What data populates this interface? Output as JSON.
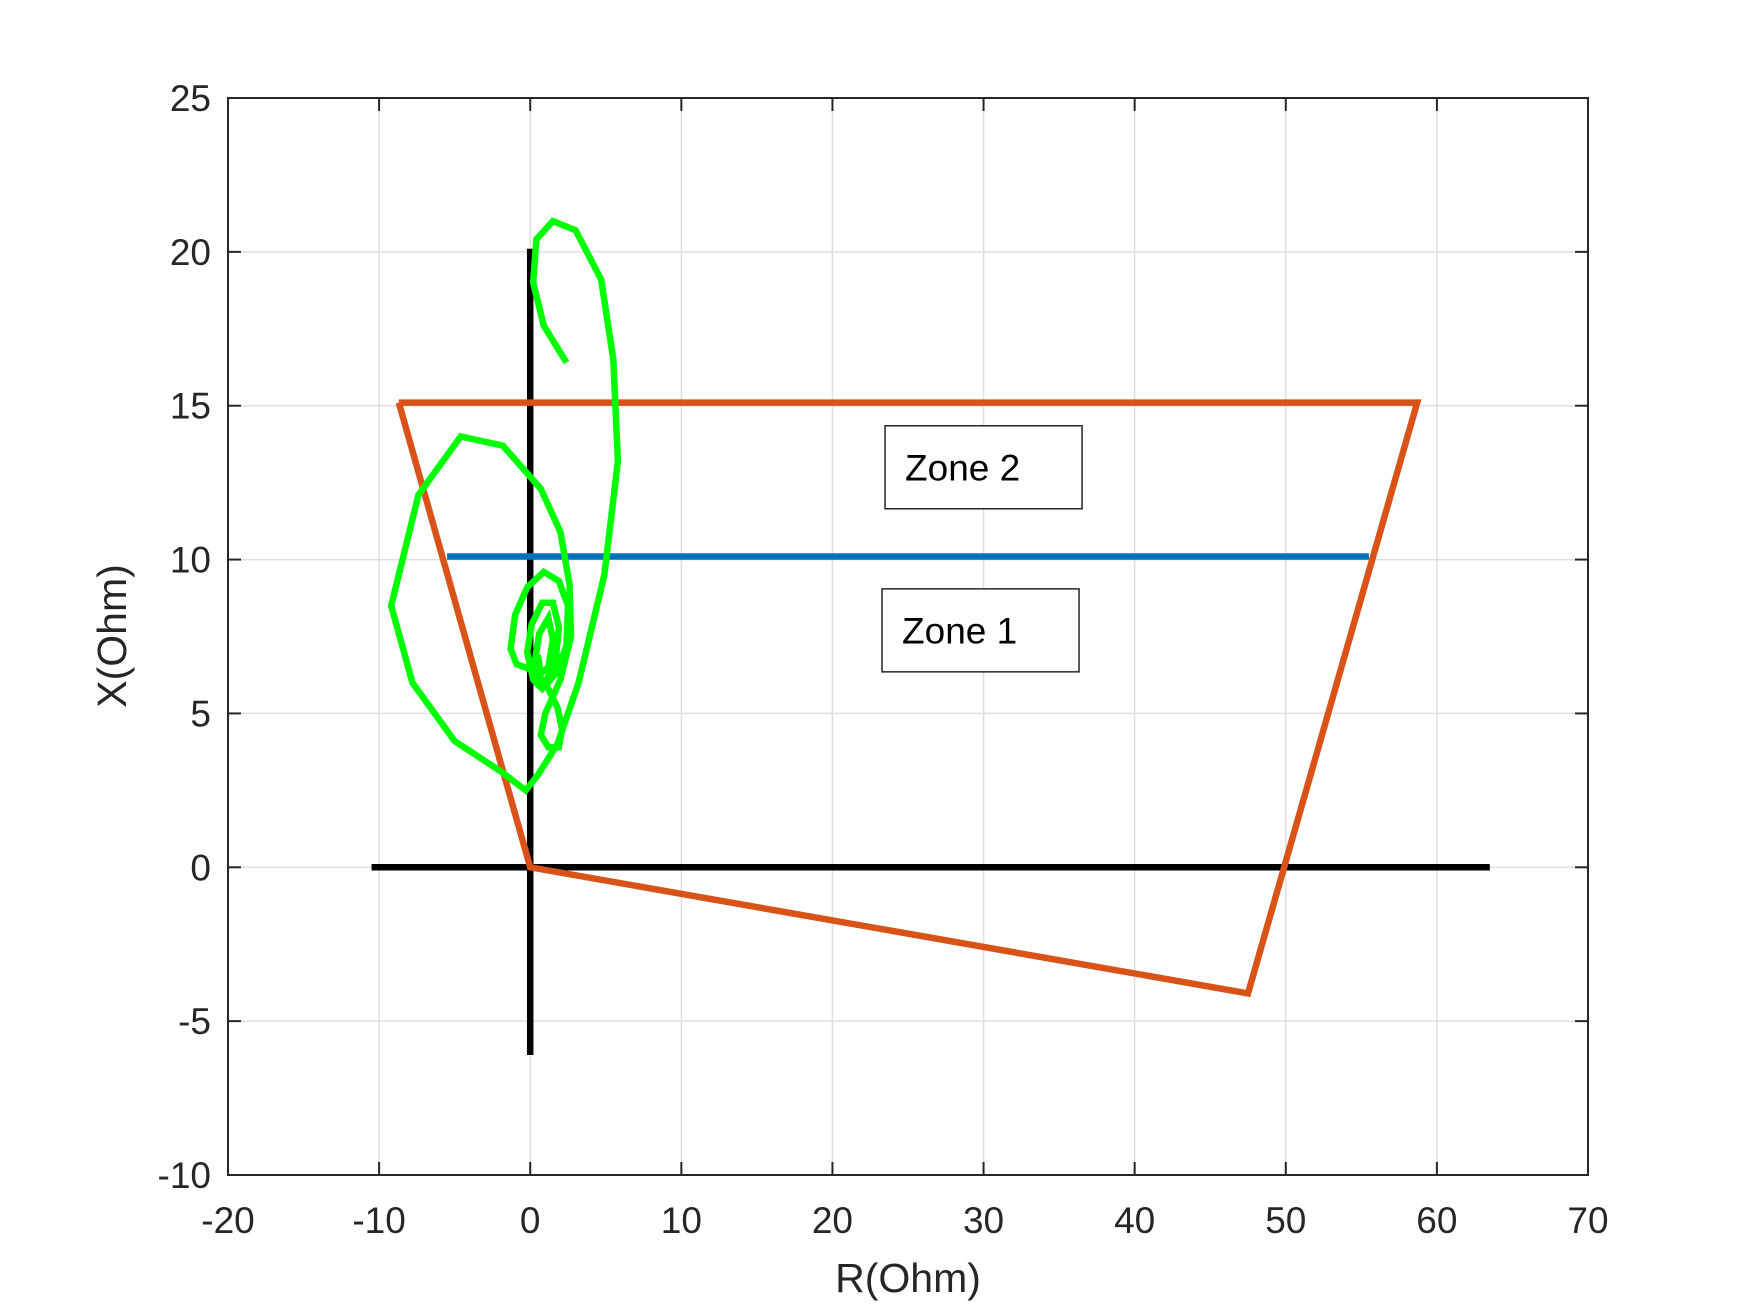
{
  "chart_data": {
    "type": "line",
    "xlabel": "R(Ohm)",
    "ylabel": "X(Ohm)",
    "xlim": [
      -20,
      70
    ],
    "ylim": [
      -10,
      25
    ],
    "xticks": [
      "-20",
      "-10",
      "0",
      "10",
      "20",
      "30",
      "40",
      "50",
      "60",
      "70"
    ],
    "yticks": [
      "-10",
      "-5",
      "0",
      "5",
      "10",
      "15",
      "20",
      "25"
    ],
    "grid": true,
    "annotations": [
      {
        "text": "Zone 2",
        "x": 30,
        "y": 13
      },
      {
        "text": "Zone 1",
        "x": 29.8,
        "y": 7.7
      }
    ],
    "series": [
      {
        "color": "#000000",
        "x": [
          -10.5,
          63.5
        ],
        "y": [
          0,
          0
        ]
      },
      {
        "color": "#000000",
        "x": [
          0,
          0
        ],
        "y": [
          -6.1,
          20.1
        ]
      },
      {
        "color": "#D95319",
        "x": [
          -8.7,
          58.7,
          47.5,
          0,
          -8.7
        ],
        "y": [
          15.1,
          15.1,
          -4.1,
          0,
          15.1
        ]
      },
      {
        "color": "#0072BD",
        "x": [
          -5.5,
          55.5
        ],
        "y": [
          10.1,
          10.1
        ]
      },
      {
        "color": "#00FF00",
        "x": [
          2.4,
          0.9,
          0.2,
          0.4,
          1.5,
          3.0,
          4.7,
          5.5,
          5.8,
          4.9,
          3.2,
          1.8,
          0.5,
          -0.3,
          -1.9,
          -5.0,
          -7.8,
          -9.2,
          -7.4,
          -4.6,
          -1.8,
          0.7,
          2.0,
          2.6,
          2.7,
          2.0,
          1.0,
          0.7,
          1.2,
          1.9,
          2.1,
          1.8,
          1.0,
          0.2,
          -0.9,
          -1.3,
          -1.0,
          -0.2,
          0.9,
          1.9,
          2.5,
          2.4,
          1.7,
          0.8,
          0.2,
          -0.2,
          0.1,
          0.8,
          1.5,
          1.9,
          1.7,
          1.1,
          0.5,
          0.3,
          0.6,
          1.2,
          1.5,
          1.2,
          0.7,
          0.5
        ],
        "y": [
          16.4,
          17.6,
          19.0,
          20.4,
          21.0,
          20.7,
          19.1,
          16.5,
          13.2,
          9.5,
          6.0,
          4.0,
          3.0,
          2.5,
          3.1,
          4.1,
          6.0,
          8.5,
          12.1,
          14.0,
          13.7,
          12.3,
          10.9,
          9.2,
          7.5,
          6.1,
          5.0,
          4.3,
          3.9,
          3.9,
          4.5,
          5.2,
          6.0,
          6.4,
          6.6,
          7.1,
          8.2,
          9.1,
          9.6,
          9.3,
          8.5,
          7.2,
          6.3,
          5.8,
          6.1,
          7.0,
          7.9,
          8.6,
          8.6,
          7.8,
          6.8,
          6.1,
          6.0,
          6.7,
          7.6,
          8.1,
          7.4,
          6.5,
          6.3,
          6.9
        ]
      }
    ]
  }
}
